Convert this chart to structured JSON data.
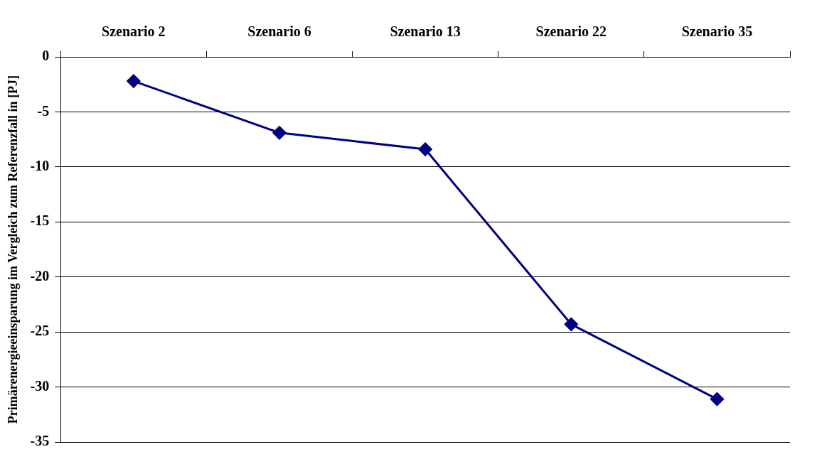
{
  "chart_data": {
    "type": "line",
    "ylabel": "Primärenergieeinsparung im Vergleich zum Referenzfall in [PJ]",
    "categories": [
      "Szenario 2",
      "Szenario 6",
      "Szenario 13",
      "Szenario 22",
      "Szenario 35"
    ],
    "series": [
      {
        "color": "#000080",
        "values": [
          -2.2,
          -6.9,
          -8.4,
          -24.3,
          -31.1
        ]
      }
    ],
    "ylim": [
      -35,
      0
    ],
    "yticks": [
      0,
      -5,
      -10,
      -15,
      -20,
      -25,
      -30,
      -35
    ],
    "grid": "y",
    "legend": false,
    "marker": "diamond",
    "line_style": "solid"
  }
}
